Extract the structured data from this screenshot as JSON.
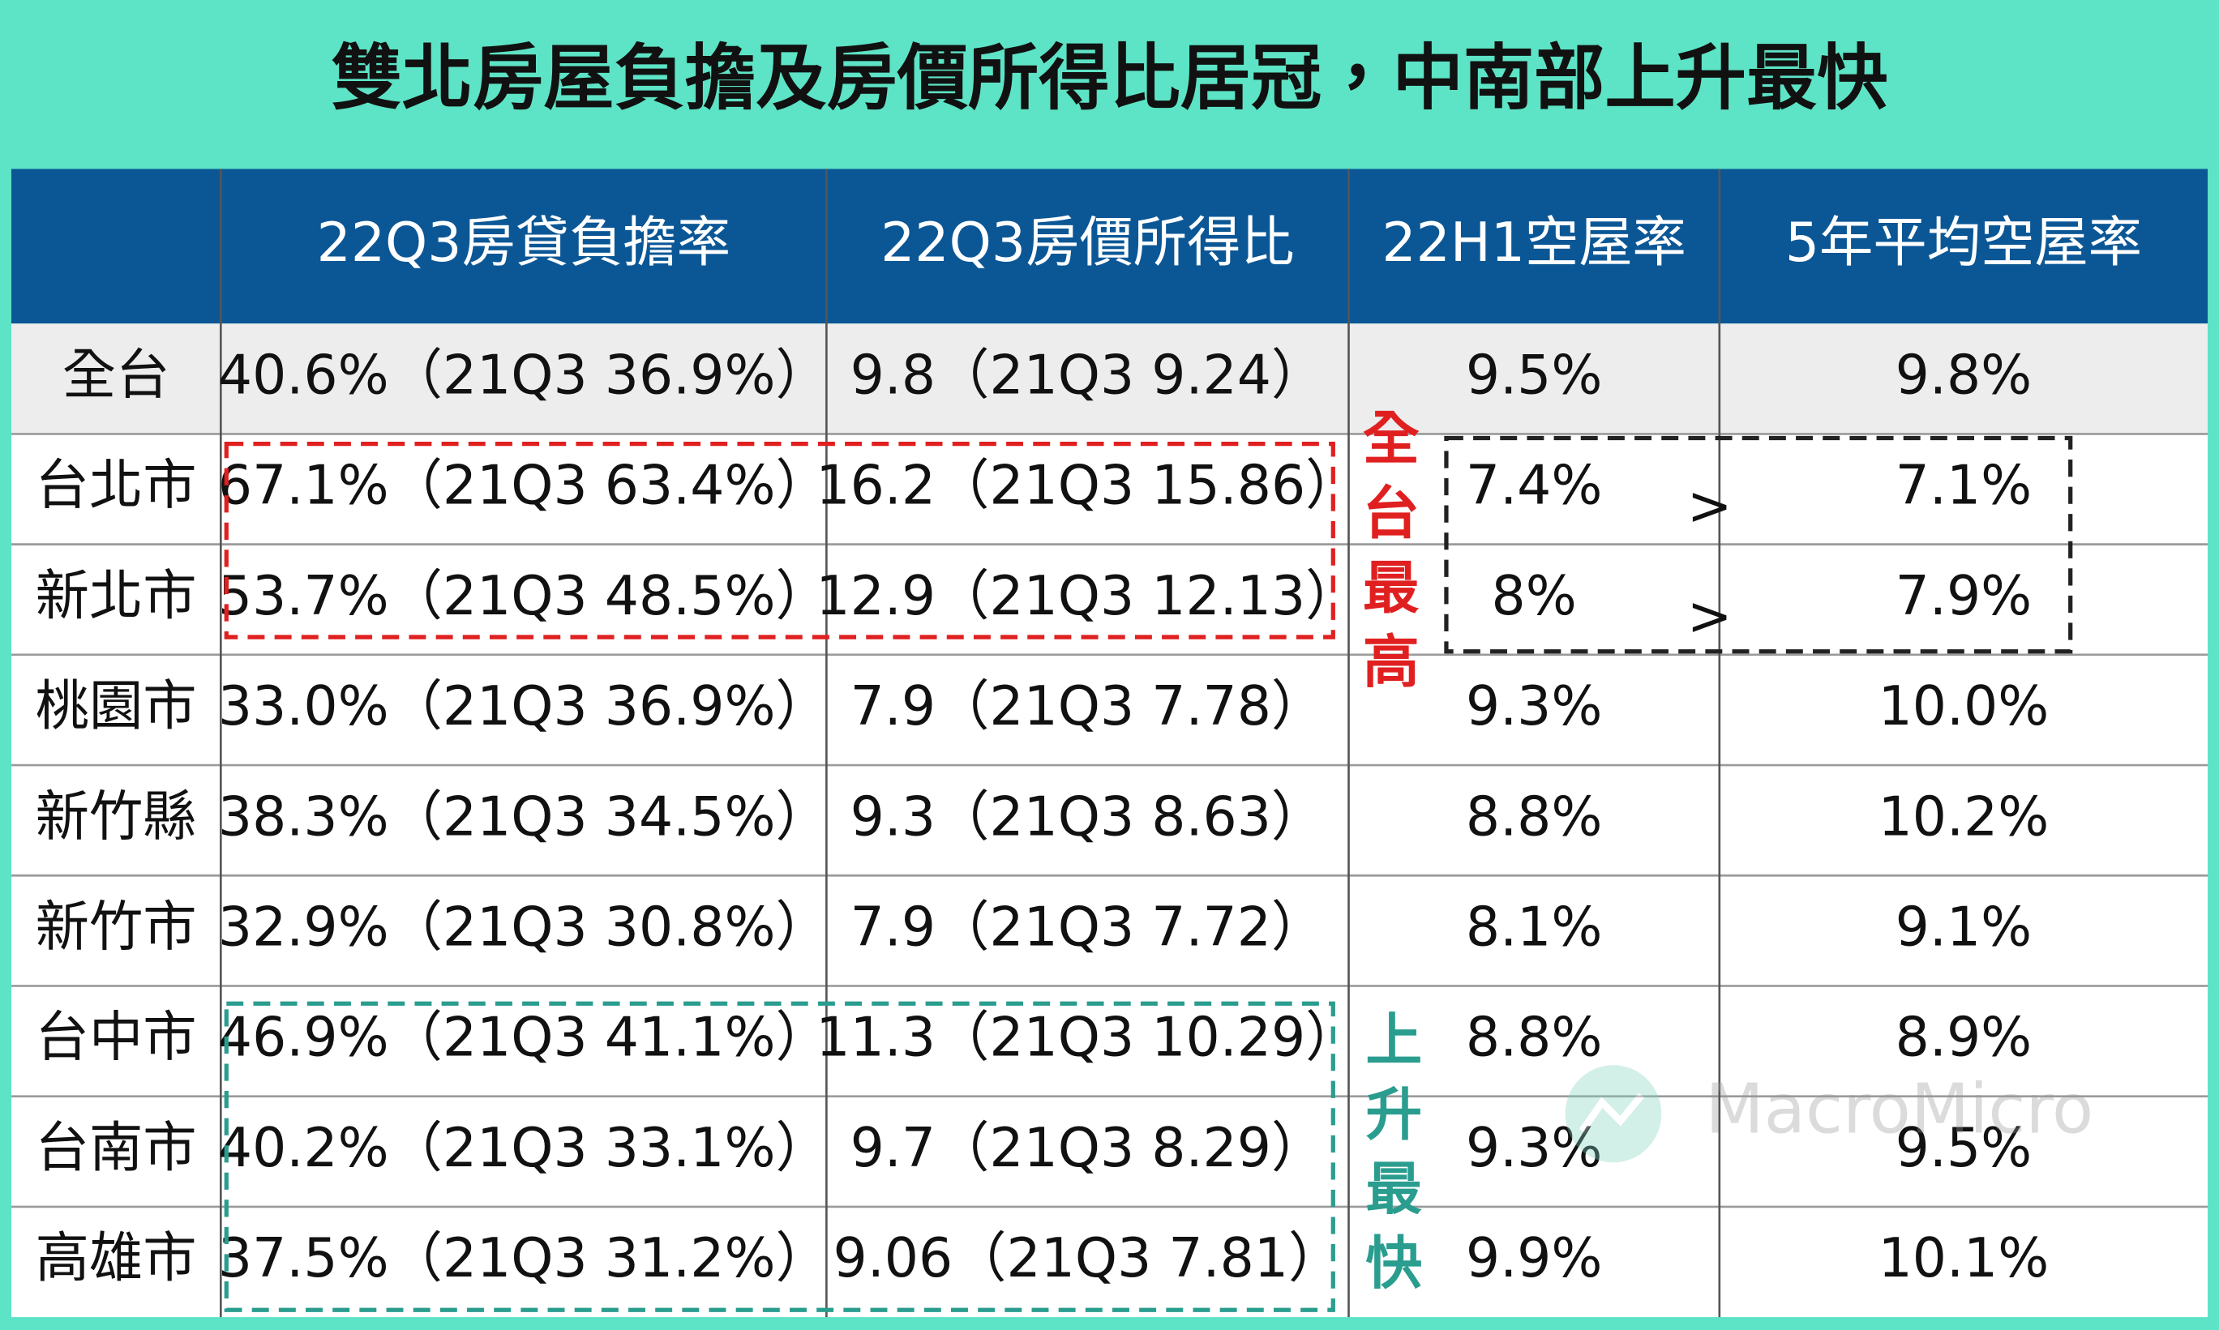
{
  "title": "雙北房屋負擔及房價所得比居冠，中南部上升最快",
  "table": {
    "header": [
      "22Q3房貸負擔率",
      "22Q3房價所得比",
      "22H1空屋率",
      "5年平均空屋率"
    ],
    "rows": [
      {
        "label": "全台",
        "cells": [
          "40.6%（21Q3 36.9%）",
          "9.8（21Q3 9.24）",
          "9.5%",
          "9.8%"
        ]
      },
      {
        "label": "台北市",
        "cells": [
          "67.1%（21Q3 63.4%）",
          "16.2（21Q3 15.86）",
          "7.4%",
          "7.1%"
        ]
      },
      {
        "label": "新北市",
        "cells": [
          "53.7%（21Q3 48.5%）",
          "12.9（21Q3 12.13）",
          "8%",
          "7.9%"
        ]
      },
      {
        "label": "桃園市",
        "cells": [
          "33.0%（21Q3 36.9%）",
          "7.9（21Q3 7.78）",
          "9.3%",
          "10.0%"
        ]
      },
      {
        "label": "新竹縣",
        "cells": [
          "38.3%（21Q3 34.5%）",
          "9.3（21Q3 8.63）",
          "8.8%",
          "10.2%"
        ]
      },
      {
        "label": "新竹市",
        "cells": [
          "32.9%（21Q3 30.8%）",
          "7.9（21Q3 7.72）",
          "8.1%",
          "9.1%"
        ]
      },
      {
        "label": "台中市",
        "cells": [
          "46.9%（21Q3 41.1%）",
          "11.3（21Q3 10.29）",
          "8.8%",
          "8.9%"
        ]
      },
      {
        "label": "台南市",
        "cells": [
          "40.2%（21Q3 33.1%）",
          "9.7（21Q3 8.29）",
          "9.3%",
          "9.5%"
        ]
      },
      {
        "label": "高雄市",
        "cells": [
          "37.5%（21Q3 31.2%）",
          "9.06（21Q3 7.81）",
          "9.9%",
          "10.1%"
        ]
      }
    ]
  },
  "annotations": {
    "highest": "全台最高",
    "fastest": "上升最快",
    "comparisons": [
      ">",
      ">"
    ]
  },
  "watermark": "MacroMicro"
}
